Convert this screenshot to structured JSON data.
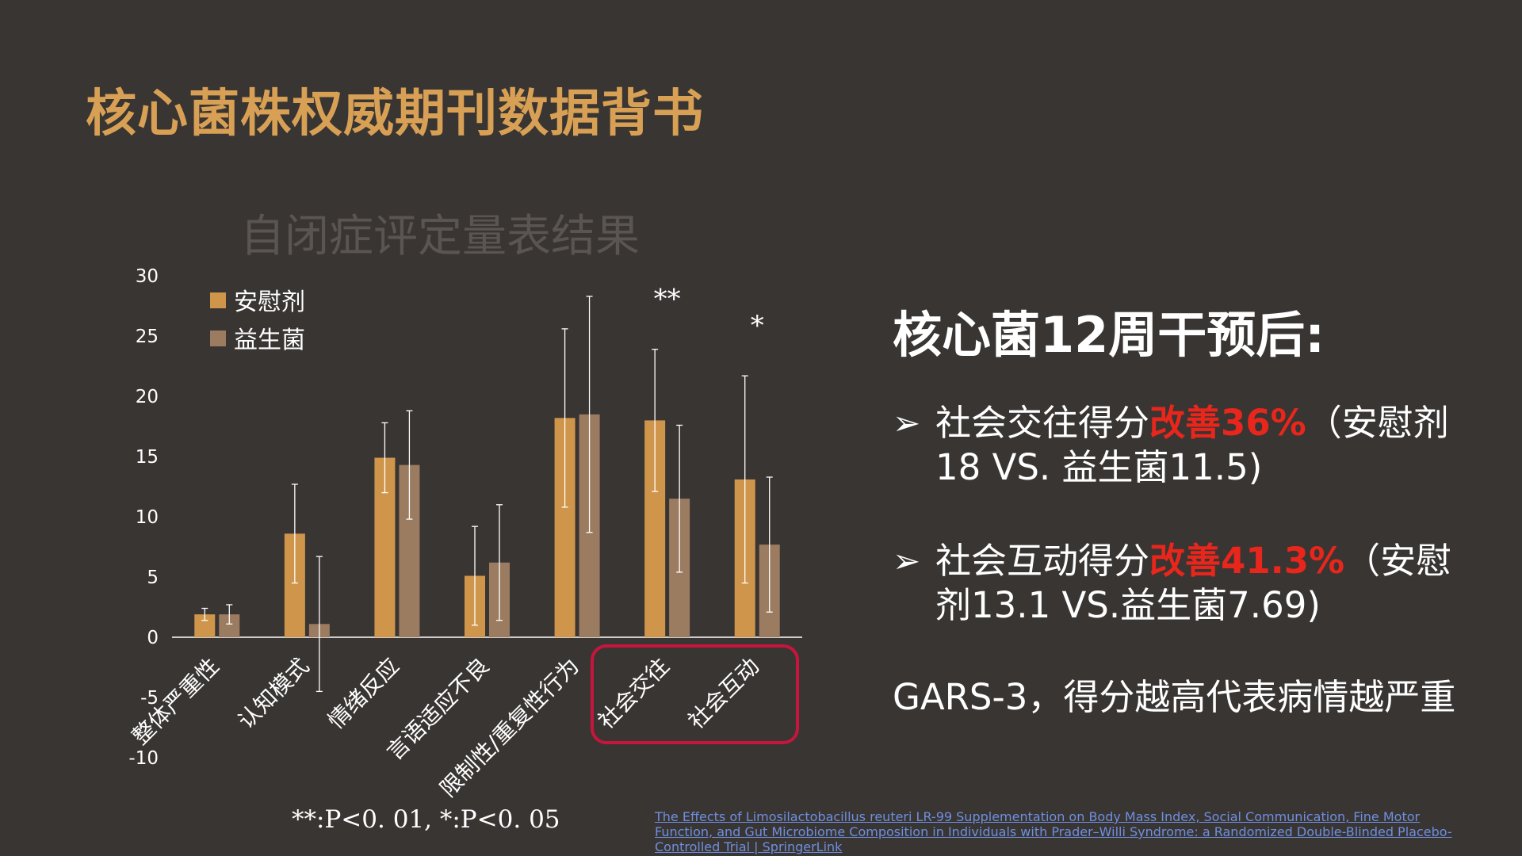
{
  "slide": {
    "title": "核心菌株权威期刊数据背书",
    "footnote": "**:P<0. 01, *:P<0. 05",
    "right_heading": "核心菌12周干预后:",
    "bullets": [
      {
        "prefix": "社会交往得分",
        "highlight": "改善36%",
        "suffix": "（安慰剂18 VS. 益生菌11.5)"
      },
      {
        "prefix": "社会互动得分",
        "highlight": "改善41.3%",
        "suffix": "（安慰剂13.1 VS.益生菌7.69)"
      }
    ],
    "note": "GARS-3，得分越高代表病情越严重",
    "reference": "The Effects of Limosilactobacillus reuteri LR-99 Supplementation on Body Mass Index, Social Communication, Fine Motor Function, and Gut Microbiome Composition in Individuals with Prader–Willi Syndrome: a Randomized Double-Blinded Placebo-Controlled Trial | SpringerLink",
    "bullet_icon": "arrowhead-icon"
  },
  "colors": {
    "background": "#393533",
    "title": "#D8A055",
    "placebo": "#CF954B",
    "probiotic": "#9C7C60",
    "highlight": "#E8261C",
    "box": "#C8153D",
    "link": "#6E8FE0"
  },
  "chart_data": {
    "type": "bar",
    "title": "自闭症评定量表结果",
    "categories": [
      "整体严重性",
      "认知模式",
      "情绪反应",
      "言语适应不良",
      "限制性/重复性行为",
      "社会交往",
      "社会互动"
    ],
    "series": [
      {
        "name": "安慰剂",
        "values": [
          1.9,
          8.6,
          14.9,
          5.1,
          18.2,
          18.0,
          13.1
        ],
        "errors": [
          0.5,
          4.1,
          2.9,
          4.1,
          7.4,
          5.9,
          8.6
        ]
      },
      {
        "name": "益生菌",
        "values": [
          1.9,
          1.1,
          14.3,
          6.2,
          18.5,
          11.5,
          7.69
        ],
        "errors": [
          0.8,
          5.6,
          4.5,
          4.8,
          9.8,
          6.1,
          5.6
        ]
      }
    ],
    "significance": [
      "",
      "",
      "",
      "",
      "",
      "**",
      "*"
    ],
    "yticks": [
      30,
      25,
      20,
      15,
      10,
      5,
      0,
      -5,
      -10
    ],
    "ylim": [
      -10,
      30
    ],
    "legend": "top-left",
    "grid": false,
    "highlighted_categories": [
      "社会交往",
      "社会互动"
    ]
  }
}
